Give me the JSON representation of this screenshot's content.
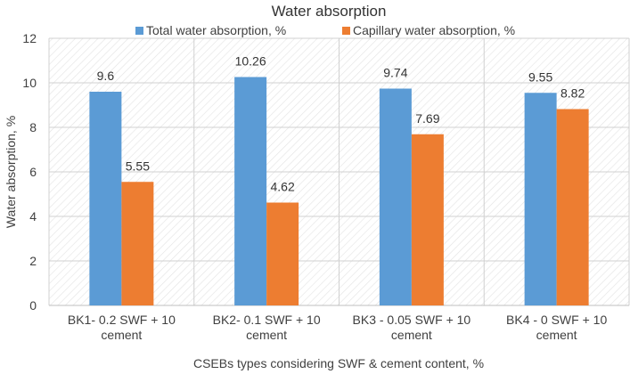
{
  "chart_data": {
    "type": "bar",
    "title": "Water absorption",
    "xlabel": "CSEBs types considering SWF & cement content, %",
    "ylabel": "Water absorption, %",
    "ylim": [
      0,
      12
    ],
    "yticks": [
      "0",
      "2",
      "4",
      "6",
      "8",
      "10",
      "12"
    ],
    "categories": [
      [
        "BK1- 0.2 SWF + 10",
        "cement"
      ],
      [
        "BK2- 0.1 SWF + 10",
        "cement"
      ],
      [
        "BK3 - 0.05 SWF + 10",
        "cement"
      ],
      [
        "BK4 - 0 SWF + 10",
        "cement"
      ]
    ],
    "series": [
      {
        "name": "Total water absorption, %",
        "color": "#5b9bd5",
        "values": [
          9.6,
          10.26,
          9.74,
          9.55
        ],
        "labels": [
          "9.6",
          "10.26",
          "9.74",
          "9.55"
        ]
      },
      {
        "name": "Capillary water absorption, %",
        "color": "#ed7d31",
        "values": [
          5.55,
          4.62,
          7.69,
          8.82
        ],
        "labels": [
          "5.55",
          "4.62",
          "7.69",
          "8.82"
        ]
      }
    ],
    "legend": "top",
    "grid": true
  }
}
